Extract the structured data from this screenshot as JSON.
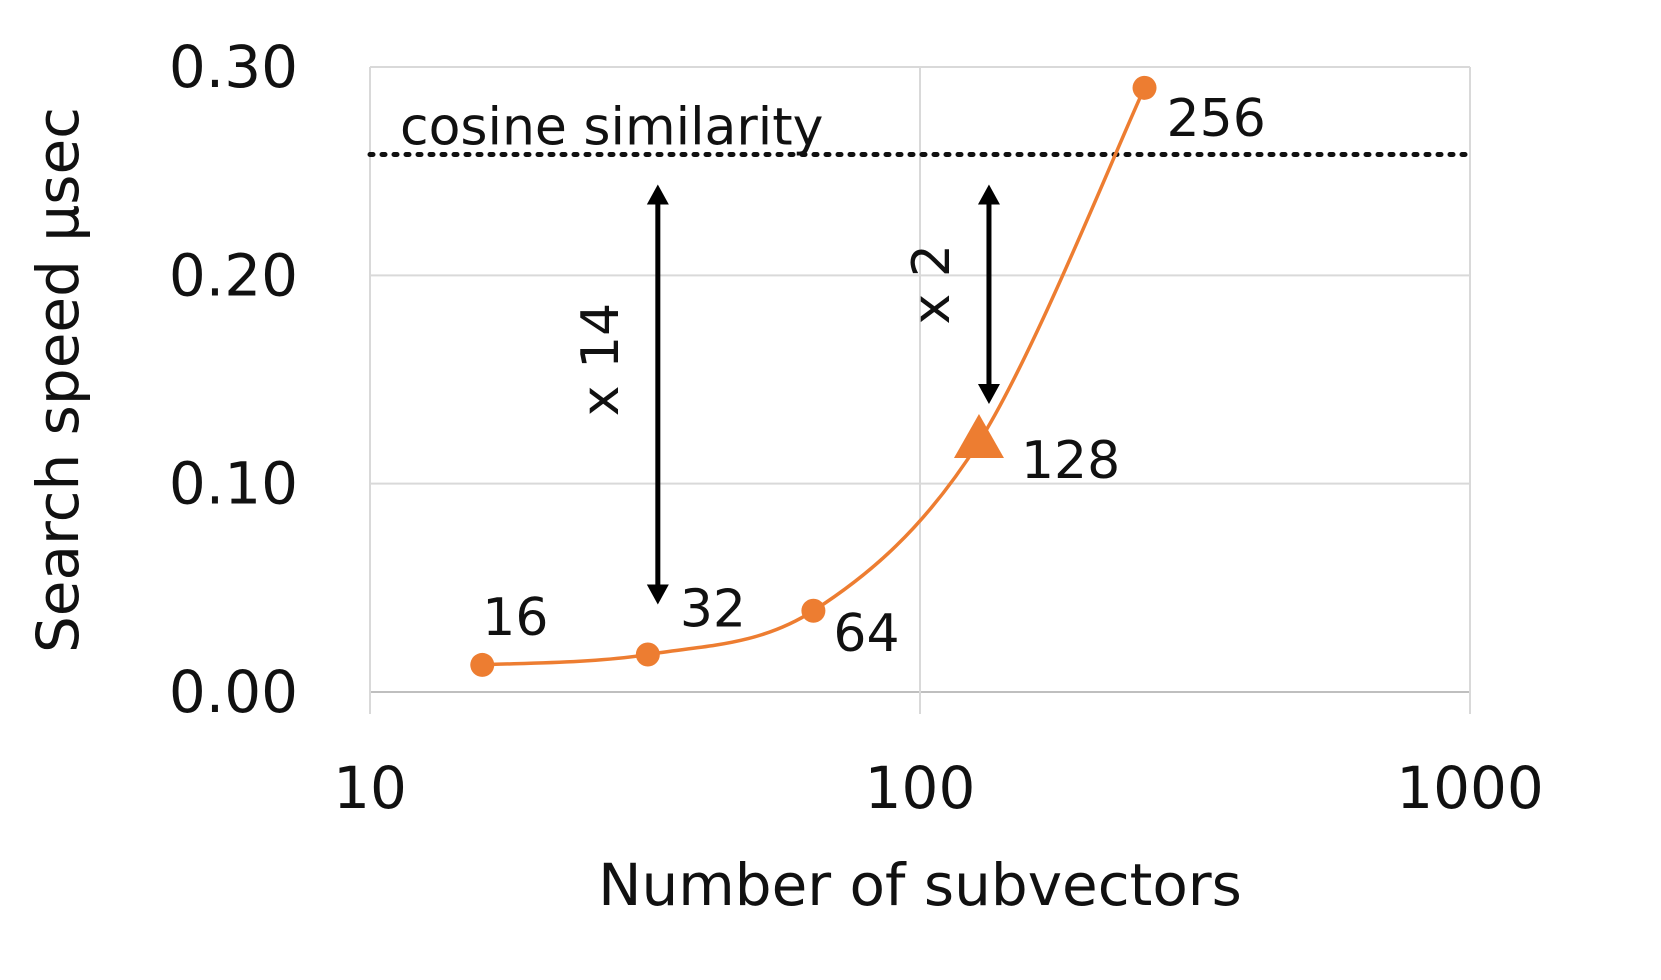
{
  "chart_data": {
    "type": "line",
    "x_scale": "log",
    "xlim": [
      10,
      1000
    ],
    "ylim": [
      0.0,
      0.3
    ],
    "x_ticks": [
      "10",
      "100",
      "1000"
    ],
    "y_ticks": [
      "0.00",
      "0.10",
      "0.20",
      "0.30"
    ],
    "xlabel": "Number of subvectors",
    "ylabel": "Search speed μsec",
    "grid": true,
    "series": [
      {
        "color": "#ED7D31",
        "x": [
          16,
          32,
          64,
          128,
          256
        ],
        "y": [
          0.013,
          0.018,
          0.039,
          0.12,
          0.29
        ],
        "point_labels": [
          "16",
          "32",
          "64",
          "128",
          "256"
        ],
        "highlight_index": 3,
        "highlight_marker": "triangle"
      }
    ],
    "reference_line": {
      "label": "cosine similarity",
      "y": 0.258,
      "style": "dotted",
      "color": "#111111"
    },
    "annotations": [
      {
        "label": "x 14",
        "x": 32,
        "y_from": 0.258,
        "y_to": 0.018
      },
      {
        "label": "x 2",
        "x": 128,
        "y_from": 0.258,
        "y_to": 0.12
      }
    ]
  }
}
